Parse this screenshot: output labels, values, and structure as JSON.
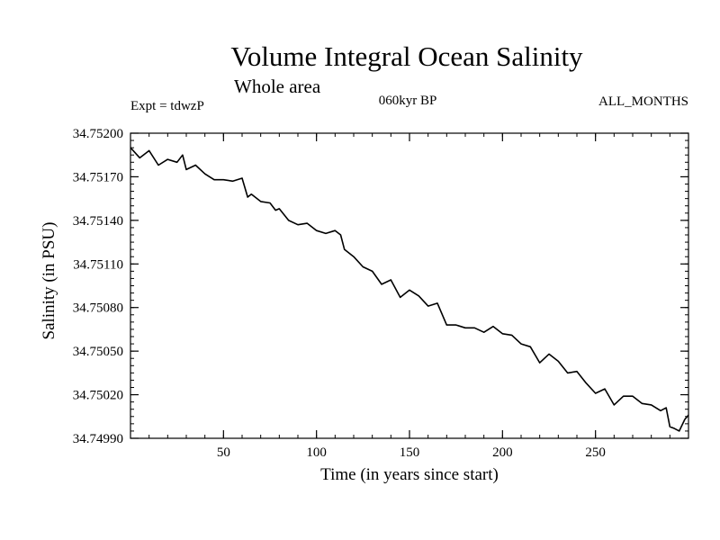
{
  "chart_data": {
    "type": "line",
    "title": "Volume Integral Ocean Salinity",
    "subtitle": "Whole area",
    "annotations": {
      "left": "Expt = tdwzP",
      "center": "060kyr BP",
      "right": "ALL_MONTHS"
    },
    "xlabel": "Time (in years since start)",
    "ylabel": "Salinity (in PSU)",
    "xlim": [
      0,
      300
    ],
    "ylim": [
      34.7499,
      34.752
    ],
    "xticks": [
      50,
      100,
      150,
      200,
      250
    ],
    "xtick_labels": [
      "50",
      "100",
      "150",
      "200",
      "250"
    ],
    "yticks": [
      34.7499,
      34.7502,
      34.7505,
      34.7508,
      34.7511,
      34.7514,
      34.7517,
      34.752
    ],
    "ytick_labels": [
      "34.74990",
      "34.75020",
      "34.75050",
      "34.75080",
      "34.75110",
      "34.75140",
      "34.75170",
      "34.75200"
    ],
    "grid": false,
    "legend": "none",
    "line_color": "#000000",
    "series": [
      {
        "x": [
          0,
          5,
          10,
          15,
          20,
          25,
          28,
          30,
          35,
          40,
          45,
          50,
          55,
          60,
          63,
          65,
          70,
          75,
          78,
          80,
          85,
          90,
          95,
          100,
          105,
          110,
          113,
          115,
          120,
          125,
          130,
          135,
          140,
          145,
          150,
          155,
          160,
          165,
          170,
          175,
          180,
          185,
          190,
          195,
          200,
          205,
          210,
          215,
          220,
          225,
          230,
          235,
          240,
          245,
          250,
          255,
          260,
          265,
          270,
          275,
          280,
          285,
          288,
          290,
          292,
          295,
          298,
          300
        ],
        "y": [
          34.7519,
          34.75183,
          34.75188,
          34.75178,
          34.75182,
          34.7518,
          34.75185,
          34.75175,
          34.75178,
          34.75172,
          34.75168,
          34.75168,
          34.75167,
          34.75169,
          34.75156,
          34.75158,
          34.75153,
          34.75152,
          34.75147,
          34.75148,
          34.7514,
          34.75137,
          34.75138,
          34.75133,
          34.75131,
          34.75133,
          34.7513,
          34.7512,
          34.75115,
          34.75108,
          34.75105,
          34.75096,
          34.75099,
          34.75087,
          34.75092,
          34.75088,
          34.75081,
          34.75083,
          34.75068,
          34.75068,
          34.75066,
          34.75066,
          34.75063,
          34.75067,
          34.75062,
          34.75061,
          34.75055,
          34.75053,
          34.75042,
          34.75048,
          34.75043,
          34.75035,
          34.75036,
          34.75028,
          34.75021,
          34.75024,
          34.75013,
          34.75019,
          34.75019,
          34.75014,
          34.75013,
          34.75009,
          34.75011,
          34.74998,
          34.74997,
          34.74995,
          34.75003,
          34.75006
        ]
      }
    ]
  }
}
